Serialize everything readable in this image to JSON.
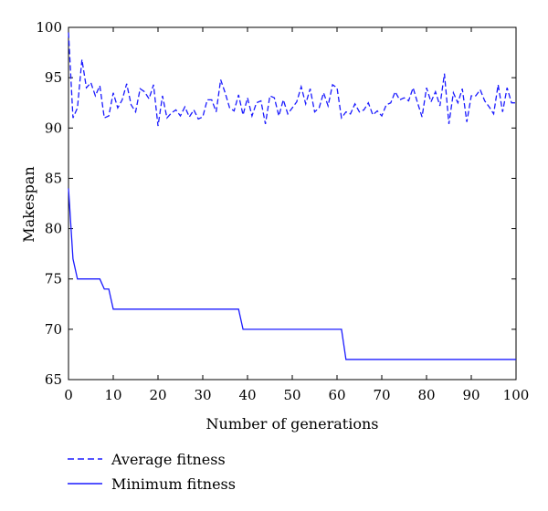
{
  "chart_data": {
    "type": "line",
    "xlabel": "Number of generations",
    "ylabel": "Makespan",
    "xlim": [
      0,
      100
    ],
    "ylim": [
      65,
      100
    ],
    "xticks": [
      0,
      10,
      20,
      30,
      40,
      50,
      60,
      70,
      80,
      90,
      100
    ],
    "yticks": [
      65,
      70,
      75,
      80,
      85,
      90,
      95,
      100
    ],
    "grid": false,
    "legend_position": "bottom-left, below plot",
    "series": [
      {
        "name": "Average fitness",
        "style": "dashed",
        "color": "#1a1aff",
        "x": [
          0,
          1,
          2,
          3,
          4,
          5,
          6,
          7,
          8,
          9,
          10,
          11,
          12,
          13,
          14,
          15,
          16,
          17,
          18,
          19,
          20,
          21,
          22,
          23,
          24,
          25,
          26,
          27,
          28,
          29,
          30,
          31,
          32,
          33,
          34,
          35,
          36,
          37,
          38,
          39,
          40,
          41,
          42,
          43,
          44,
          45,
          46,
          47,
          48,
          49,
          50,
          51,
          52,
          53,
          54,
          55,
          56,
          57,
          58,
          59,
          60,
          61,
          62,
          63,
          64,
          65,
          66,
          67,
          68,
          69,
          70,
          71,
          72,
          73,
          74,
          75,
          76,
          77,
          78,
          79,
          80,
          81,
          82,
          83,
          84,
          85,
          86,
          87,
          88,
          89,
          90,
          91,
          92,
          93,
          94,
          95,
          96,
          97,
          98,
          99,
          100
        ],
        "y": [
          99.5,
          91.0,
          92.0,
          96.8,
          94.0,
          94.5,
          93.2,
          94.2,
          91.0,
          91.2,
          93.5,
          92.0,
          92.8,
          94.4,
          92.3,
          91.6,
          93.9,
          93.6,
          92.9,
          94.3,
          90.2,
          93.2,
          91.0,
          91.5,
          91.8,
          91.2,
          92.1,
          91.1,
          91.8,
          90.9,
          91.1,
          92.8,
          92.8,
          91.6,
          94.8,
          93.5,
          92.0,
          91.7,
          93.3,
          91.3,
          93.0,
          91.2,
          92.5,
          92.7,
          90.4,
          93.2,
          93.0,
          91.2,
          92.8,
          91.4,
          92.0,
          92.6,
          94.1,
          92.4,
          93.9,
          91.6,
          92.0,
          93.5,
          92.2,
          94.3,
          94.0,
          91.0,
          91.6,
          91.4,
          92.4,
          91.6,
          91.8,
          92.5,
          91.3,
          91.7,
          91.2,
          92.3,
          92.5,
          93.6,
          92.8,
          93.0,
          92.7,
          94.0,
          92.5,
          91.1,
          94.0,
          92.6,
          93.6,
          92.2,
          95.4,
          90.4,
          93.5,
          92.5,
          93.9,
          90.6,
          93.2,
          93.2,
          93.8,
          92.7,
          92.1,
          91.4,
          94.3,
          91.6,
          94.0,
          92.5,
          92.5
        ]
      },
      {
        "name": "Minimum fitness",
        "style": "solid",
        "color": "#1a1aff",
        "x": [
          0,
          1,
          2,
          7,
          8,
          9,
          10,
          38,
          39,
          61,
          62,
          100
        ],
        "y": [
          84,
          77,
          75,
          75,
          74,
          74,
          72,
          72,
          70,
          70,
          67,
          67
        ]
      }
    ]
  }
}
